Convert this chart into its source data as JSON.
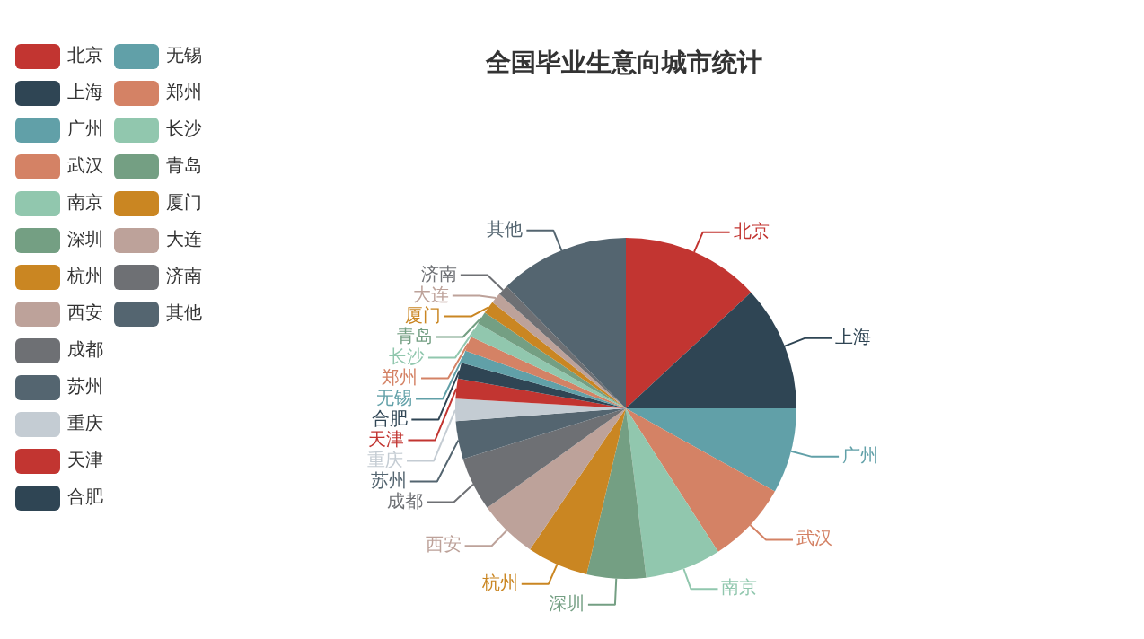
{
  "chart_data": {
    "type": "pie",
    "title": "全国毕业生意向城市统计",
    "categories": [
      "北京",
      "上海",
      "广州",
      "武汉",
      "南京",
      "深圳",
      "杭州",
      "西安",
      "成都",
      "苏州",
      "重庆",
      "天津",
      "合肥",
      "无锡",
      "郑州",
      "长沙",
      "青岛",
      "厦门",
      "大连",
      "济南",
      "其他"
    ],
    "values": [
      13.1,
      11.9,
      8.1,
      7.8,
      7.2,
      5.6,
      5.8,
      5.6,
      5.1,
      3.6,
      2.1,
      1.9,
      1.5,
      1.2,
      1.4,
      1.4,
      1.2,
      1.2,
      1.0,
      1.0,
      12.3
    ],
    "colors": [
      "#c23531",
      "#2f4554",
      "#61a0a8",
      "#d48265",
      "#91c7ae",
      "#749f83",
      "#ca8622",
      "#bda29a",
      "#6e7074",
      "#546570",
      "#c4ccd3",
      "#c23531",
      "#2f4554",
      "#61a0a8",
      "#d48265",
      "#91c7ae",
      "#749f83",
      "#ca8622",
      "#bda29a",
      "#6e7074",
      "#546570"
    ],
    "legend": "top left"
  }
}
